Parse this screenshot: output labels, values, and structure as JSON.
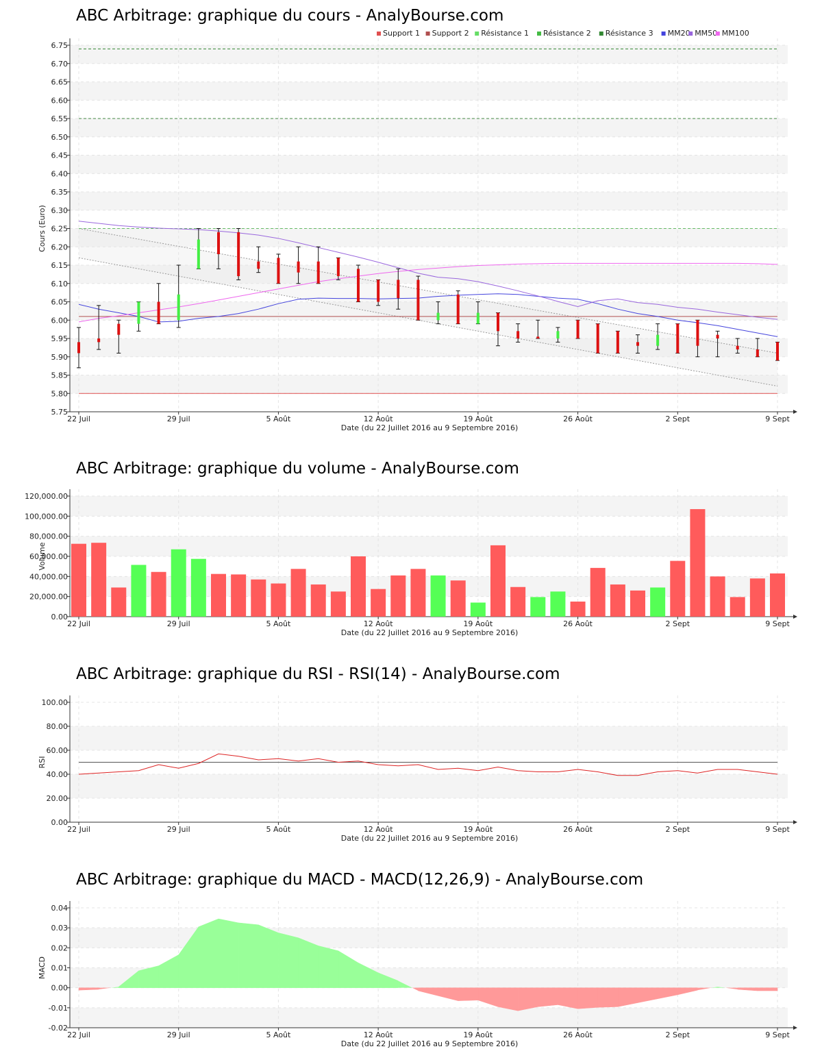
{
  "chart_data": [
    {
      "type": "candlestick",
      "title": "ABC Arbitrage: graphique du cours - AnalyBourse.com",
      "xlabel": "Date (du 22 Juillet 2016 au 9 Septembre 2016)",
      "ylabel": "Cours (Euro)",
      "ylim": [
        5.75,
        6.75
      ],
      "yticks": [
        "5.75",
        "5.80",
        "5.85",
        "5.90",
        "5.95",
        "6.00",
        "6.05",
        "6.10",
        "6.15",
        "6.20",
        "6.25",
        "6.30",
        "6.35",
        "6.40",
        "6.45",
        "6.50",
        "6.55",
        "6.60",
        "6.65",
        "6.70",
        "6.75"
      ],
      "xticks": [
        {
          "index": 0,
          "label": "22 Juil"
        },
        {
          "index": 5,
          "label": "29 Juil"
        },
        {
          "index": 10,
          "label": "5 Août"
        },
        {
          "index": 15,
          "label": "12 Août"
        },
        {
          "index": 20,
          "label": "19 Août"
        },
        {
          "index": 25,
          "label": "26 Août"
        },
        {
          "index": 30,
          "label": "2 Sept"
        },
        {
          "index": 35,
          "label": "9 Sept"
        }
      ],
      "grid": true,
      "legend_position": "top-right",
      "legend": [
        {
          "name": "Support 1",
          "color": "#e05050"
        },
        {
          "name": "Support 2",
          "color": "#b05050"
        },
        {
          "name": "Résistance 1",
          "color": "#66dd66"
        },
        {
          "name": "Résistance 2",
          "color": "#44bb44"
        },
        {
          "name": "Résistance 3",
          "color": "#338833"
        },
        {
          "name": "MM20",
          "color": "#4444dd"
        },
        {
          "name": "MM50",
          "color": "#9966dd"
        },
        {
          "name": "MM100",
          "color": "#ee66ee"
        }
      ],
      "candles": [
        {
          "o": 5.94,
          "h": 5.98,
          "l": 5.87,
          "c": 5.91
        },
        {
          "o": 5.95,
          "h": 6.04,
          "l": 5.92,
          "c": 5.94
        },
        {
          "o": 5.99,
          "h": 6.0,
          "l": 5.91,
          "c": 5.96
        },
        {
          "o": 5.99,
          "h": 6.05,
          "l": 5.97,
          "c": 6.05
        },
        {
          "o": 6.05,
          "h": 6.1,
          "l": 5.99,
          "c": 5.99
        },
        {
          "o": 6.0,
          "h": 6.15,
          "l": 5.98,
          "c": 6.07
        },
        {
          "o": 6.14,
          "h": 6.25,
          "l": 6.14,
          "c": 6.22
        },
        {
          "o": 6.24,
          "h": 6.25,
          "l": 6.14,
          "c": 6.18
        },
        {
          "o": 6.24,
          "h": 6.25,
          "l": 6.11,
          "c": 6.12
        },
        {
          "o": 6.16,
          "h": 6.2,
          "l": 6.13,
          "c": 6.14
        },
        {
          "o": 6.17,
          "h": 6.18,
          "l": 6.1,
          "c": 6.1
        },
        {
          "o": 6.16,
          "h": 6.2,
          "l": 6.1,
          "c": 6.13
        },
        {
          "o": 6.16,
          "h": 6.2,
          "l": 6.1,
          "c": 6.1
        },
        {
          "o": 6.17,
          "h": 6.17,
          "l": 6.11,
          "c": 6.12
        },
        {
          "o": 6.14,
          "h": 6.15,
          "l": 6.05,
          "c": 6.05
        },
        {
          "o": 6.11,
          "h": 6.11,
          "l": 6.04,
          "c": 6.05
        },
        {
          "o": 6.11,
          "h": 6.14,
          "l": 6.03,
          "c": 6.06
        },
        {
          "o": 6.11,
          "h": 6.12,
          "l": 6.0,
          "c": 6.0
        },
        {
          "o": 6.0,
          "h": 6.05,
          "l": 5.99,
          "c": 6.02
        },
        {
          "o": 6.07,
          "h": 6.08,
          "l": 5.99,
          "c": 5.99
        },
        {
          "o": 5.99,
          "h": 6.05,
          "l": 5.99,
          "c": 6.02
        },
        {
          "o": 6.02,
          "h": 6.02,
          "l": 5.93,
          "c": 5.97
        },
        {
          "o": 5.97,
          "h": 5.99,
          "l": 5.94,
          "c": 5.95
        },
        {
          "o": 5.955,
          "h": 6.0,
          "l": 5.95,
          "c": 5.95
        },
        {
          "o": 5.95,
          "h": 5.98,
          "l": 5.94,
          "c": 5.97
        },
        {
          "o": 6.0,
          "h": 6.0,
          "l": 5.95,
          "c": 5.95
        },
        {
          "o": 5.99,
          "h": 5.99,
          "l": 5.91,
          "c": 5.91
        },
        {
          "o": 5.97,
          "h": 5.97,
          "l": 5.91,
          "c": 5.91
        },
        {
          "o": 5.94,
          "h": 5.96,
          "l": 5.91,
          "c": 5.93
        },
        {
          "o": 5.93,
          "h": 5.99,
          "l": 5.92,
          "c": 5.96
        },
        {
          "o": 5.99,
          "h": 5.99,
          "l": 5.91,
          "c": 5.91
        },
        {
          "o": 6.0,
          "h": 6.0,
          "l": 5.9,
          "c": 5.93
        },
        {
          "o": 5.96,
          "h": 5.97,
          "l": 5.9,
          "c": 5.95
        },
        {
          "o": 5.93,
          "h": 5.95,
          "l": 5.91,
          "c": 5.92
        },
        {
          "o": 5.92,
          "h": 5.95,
          "l": 5.9,
          "c": 5.9
        },
        {
          "o": 5.94,
          "h": 5.94,
          "l": 5.89,
          "c": 5.89
        }
      ],
      "levels": [
        {
          "name": "Support 1",
          "value": 5.8,
          "color": "#e05050",
          "dash": false
        },
        {
          "name": "Support 2",
          "value": 6.01,
          "color": "#b05050",
          "dash": false
        },
        {
          "name": "Résistance 1",
          "value": 6.25,
          "color": "#66bb66",
          "dash": true
        },
        {
          "name": "Résistance 2",
          "value": 6.55,
          "color": "#448844",
          "dash": true
        },
        {
          "name": "Résistance 3",
          "value": 6.74,
          "color": "#338833",
          "dash": true
        }
      ],
      "channel": {
        "upper": [
          6.25,
          5.91
        ],
        "lower": [
          6.17,
          5.82
        ]
      },
      "moving_averages": [
        {
          "name": "MM20",
          "color": "#4444dd",
          "values": [
            6.043,
            6.03,
            6.02,
            6.01,
            5.995,
            5.997,
            6.005,
            6.01,
            6.018,
            6.03,
            6.045,
            6.057,
            6.06,
            6.059,
            6.059,
            6.058,
            6.059,
            6.06,
            6.065,
            6.068,
            6.07,
            6.072,
            6.07,
            6.065,
            6.06,
            6.057,
            6.045,
            6.03,
            6.018,
            6.01,
            6.0,
            5.993,
            5.985,
            5.975,
            5.965,
            5.955
          ]
        },
        {
          "name": "MM50",
          "color": "#9966dd",
          "values": [
            6.27,
            6.264,
            6.258,
            6.254,
            6.251,
            6.249,
            6.247,
            6.243,
            6.238,
            6.232,
            6.223,
            6.211,
            6.198,
            6.185,
            6.172,
            6.158,
            6.143,
            6.128,
            6.117,
            6.113,
            6.105,
            6.093,
            6.08,
            6.066,
            6.051,
            6.037,
            6.053,
            6.058,
            6.048,
            6.043,
            6.035,
            6.03,
            6.022,
            6.015,
            6.008,
            6.002
          ]
        },
        {
          "name": "MM100",
          "color": "#ee66ee",
          "values": [
            5.995,
            6.005,
            6.012,
            6.02,
            6.028,
            6.036,
            6.045,
            6.055,
            6.065,
            6.075,
            6.085,
            6.095,
            6.105,
            6.113,
            6.12,
            6.127,
            6.133,
            6.138,
            6.142,
            6.146,
            6.149,
            6.151,
            6.153,
            6.154,
            6.155,
            6.155,
            6.155,
            6.155,
            6.155,
            6.155,
            6.155,
            6.155,
            6.155,
            6.155,
            6.154,
            6.152
          ]
        }
      ]
    },
    {
      "type": "bar",
      "title": "ABC Arbitrage: graphique du volume - AnalyBourse.com",
      "xlabel": "Date (du 22 Juillet 2016 au 9 Septembre 2016)",
      "ylabel": "Volume",
      "ylim": [
        0,
        120000
      ],
      "yticks": [
        "0.00",
        "20,000.00",
        "40,000.00",
        "60,000.00",
        "80,000.00",
        "100,000.00",
        "120,000.00"
      ],
      "grid": true,
      "values": [
        72500,
        73500,
        29000,
        51500,
        44500,
        67000,
        57500,
        42500,
        42000,
        37000,
        33000,
        47500,
        32000,
        25000,
        60000,
        27500,
        41000,
        47500,
        41000,
        36000,
        14000,
        71000,
        29500,
        19500,
        25000,
        15000,
        48500,
        32000,
        26000,
        29000,
        55500,
        107000,
        40000,
        19500,
        38000,
        43000
      ],
      "colors": [
        "red",
        "red",
        "red",
        "green",
        "red",
        "green",
        "green",
        "red",
        "red",
        "red",
        "red",
        "red",
        "red",
        "red",
        "red",
        "red",
        "red",
        "red",
        "green",
        "red",
        "green",
        "red",
        "red",
        "green",
        "green",
        "red",
        "red",
        "red",
        "red",
        "green",
        "red",
        "red",
        "red",
        "red",
        "red",
        "red"
      ]
    },
    {
      "type": "line",
      "title": "ABC Arbitrage: graphique du RSI - RSI(14) - AnalyBourse.com",
      "xlabel": "Date (du 22 Juillet 2016 au 9 Septembre 2016)",
      "ylabel": "RSI",
      "ylim": [
        0,
        100
      ],
      "yticks": [
        "0.00",
        "20.00",
        "40.00",
        "60.00",
        "80.00",
        "100.00"
      ],
      "grid": true,
      "reference": 50,
      "series": [
        {
          "values": [
            40,
            41,
            42,
            43,
            48,
            45,
            49,
            57,
            55,
            52,
            53,
            51,
            53,
            50,
            51,
            48,
            47,
            48,
            44,
            45,
            43,
            46,
            43,
            42,
            42,
            44,
            42,
            39,
            39,
            42,
            43,
            41,
            44,
            44,
            42,
            40
          ]
        }
      ]
    },
    {
      "type": "area",
      "title": "ABC Arbitrage: graphique du MACD - MACD(12,26,9) - AnalyBourse.com",
      "xlabel": "Date (du 22 Juillet 2016 au 9 Septembre 2016)",
      "ylabel": "MACD",
      "ylim": [
        -0.02,
        0.04
      ],
      "yticks": [
        "-0.02",
        "-0.01",
        "0.00",
        "0.01",
        "0.02",
        "0.03",
        "0.04"
      ],
      "grid": true,
      "positive_color": "#99ff99",
      "negative_color": "#ff9999",
      "series": [
        {
          "values": [
            -0.0012,
            -0.0008,
            0.0005,
            0.0085,
            0.011,
            0.0165,
            0.0305,
            0.0345,
            0.0325,
            0.0315,
            0.0275,
            0.025,
            0.021,
            0.0185,
            0.0125,
            0.0075,
            0.0035,
            -0.0015,
            -0.004,
            -0.0065,
            -0.0062,
            -0.0095,
            -0.0115,
            -0.0095,
            -0.0085,
            -0.0105,
            -0.0098,
            -0.0095,
            -0.0075,
            -0.0055,
            -0.0035,
            -0.0012,
            0.0005,
            -0.0008,
            -0.0015,
            -0.0015
          ]
        }
      ]
    }
  ]
}
